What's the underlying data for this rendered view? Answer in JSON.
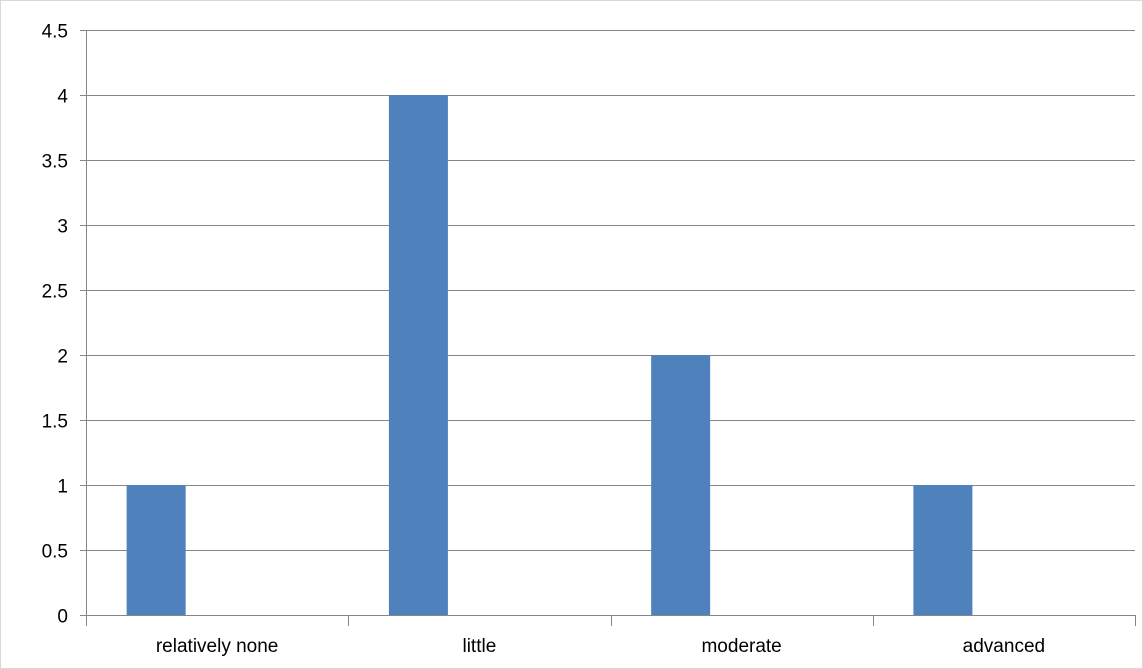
{
  "chart_data": {
    "type": "bar",
    "title": "",
    "xlabel": "",
    "ylabel": "",
    "categories": [
      "relatively none",
      "little",
      "moderate",
      "advanced"
    ],
    "series": [
      {
        "values": [
          1,
          4,
          2,
          1
        ]
      }
    ],
    "ylim": [
      0,
      4.5
    ],
    "yticks": [
      "0",
      "0.5",
      "1",
      "1.5",
      "2",
      "2.5",
      "3",
      "3.5",
      "4",
      "4.5"
    ],
    "grid": true,
    "legend": "none",
    "bar_color": "#4f81bd",
    "grid_color": "#868686"
  }
}
